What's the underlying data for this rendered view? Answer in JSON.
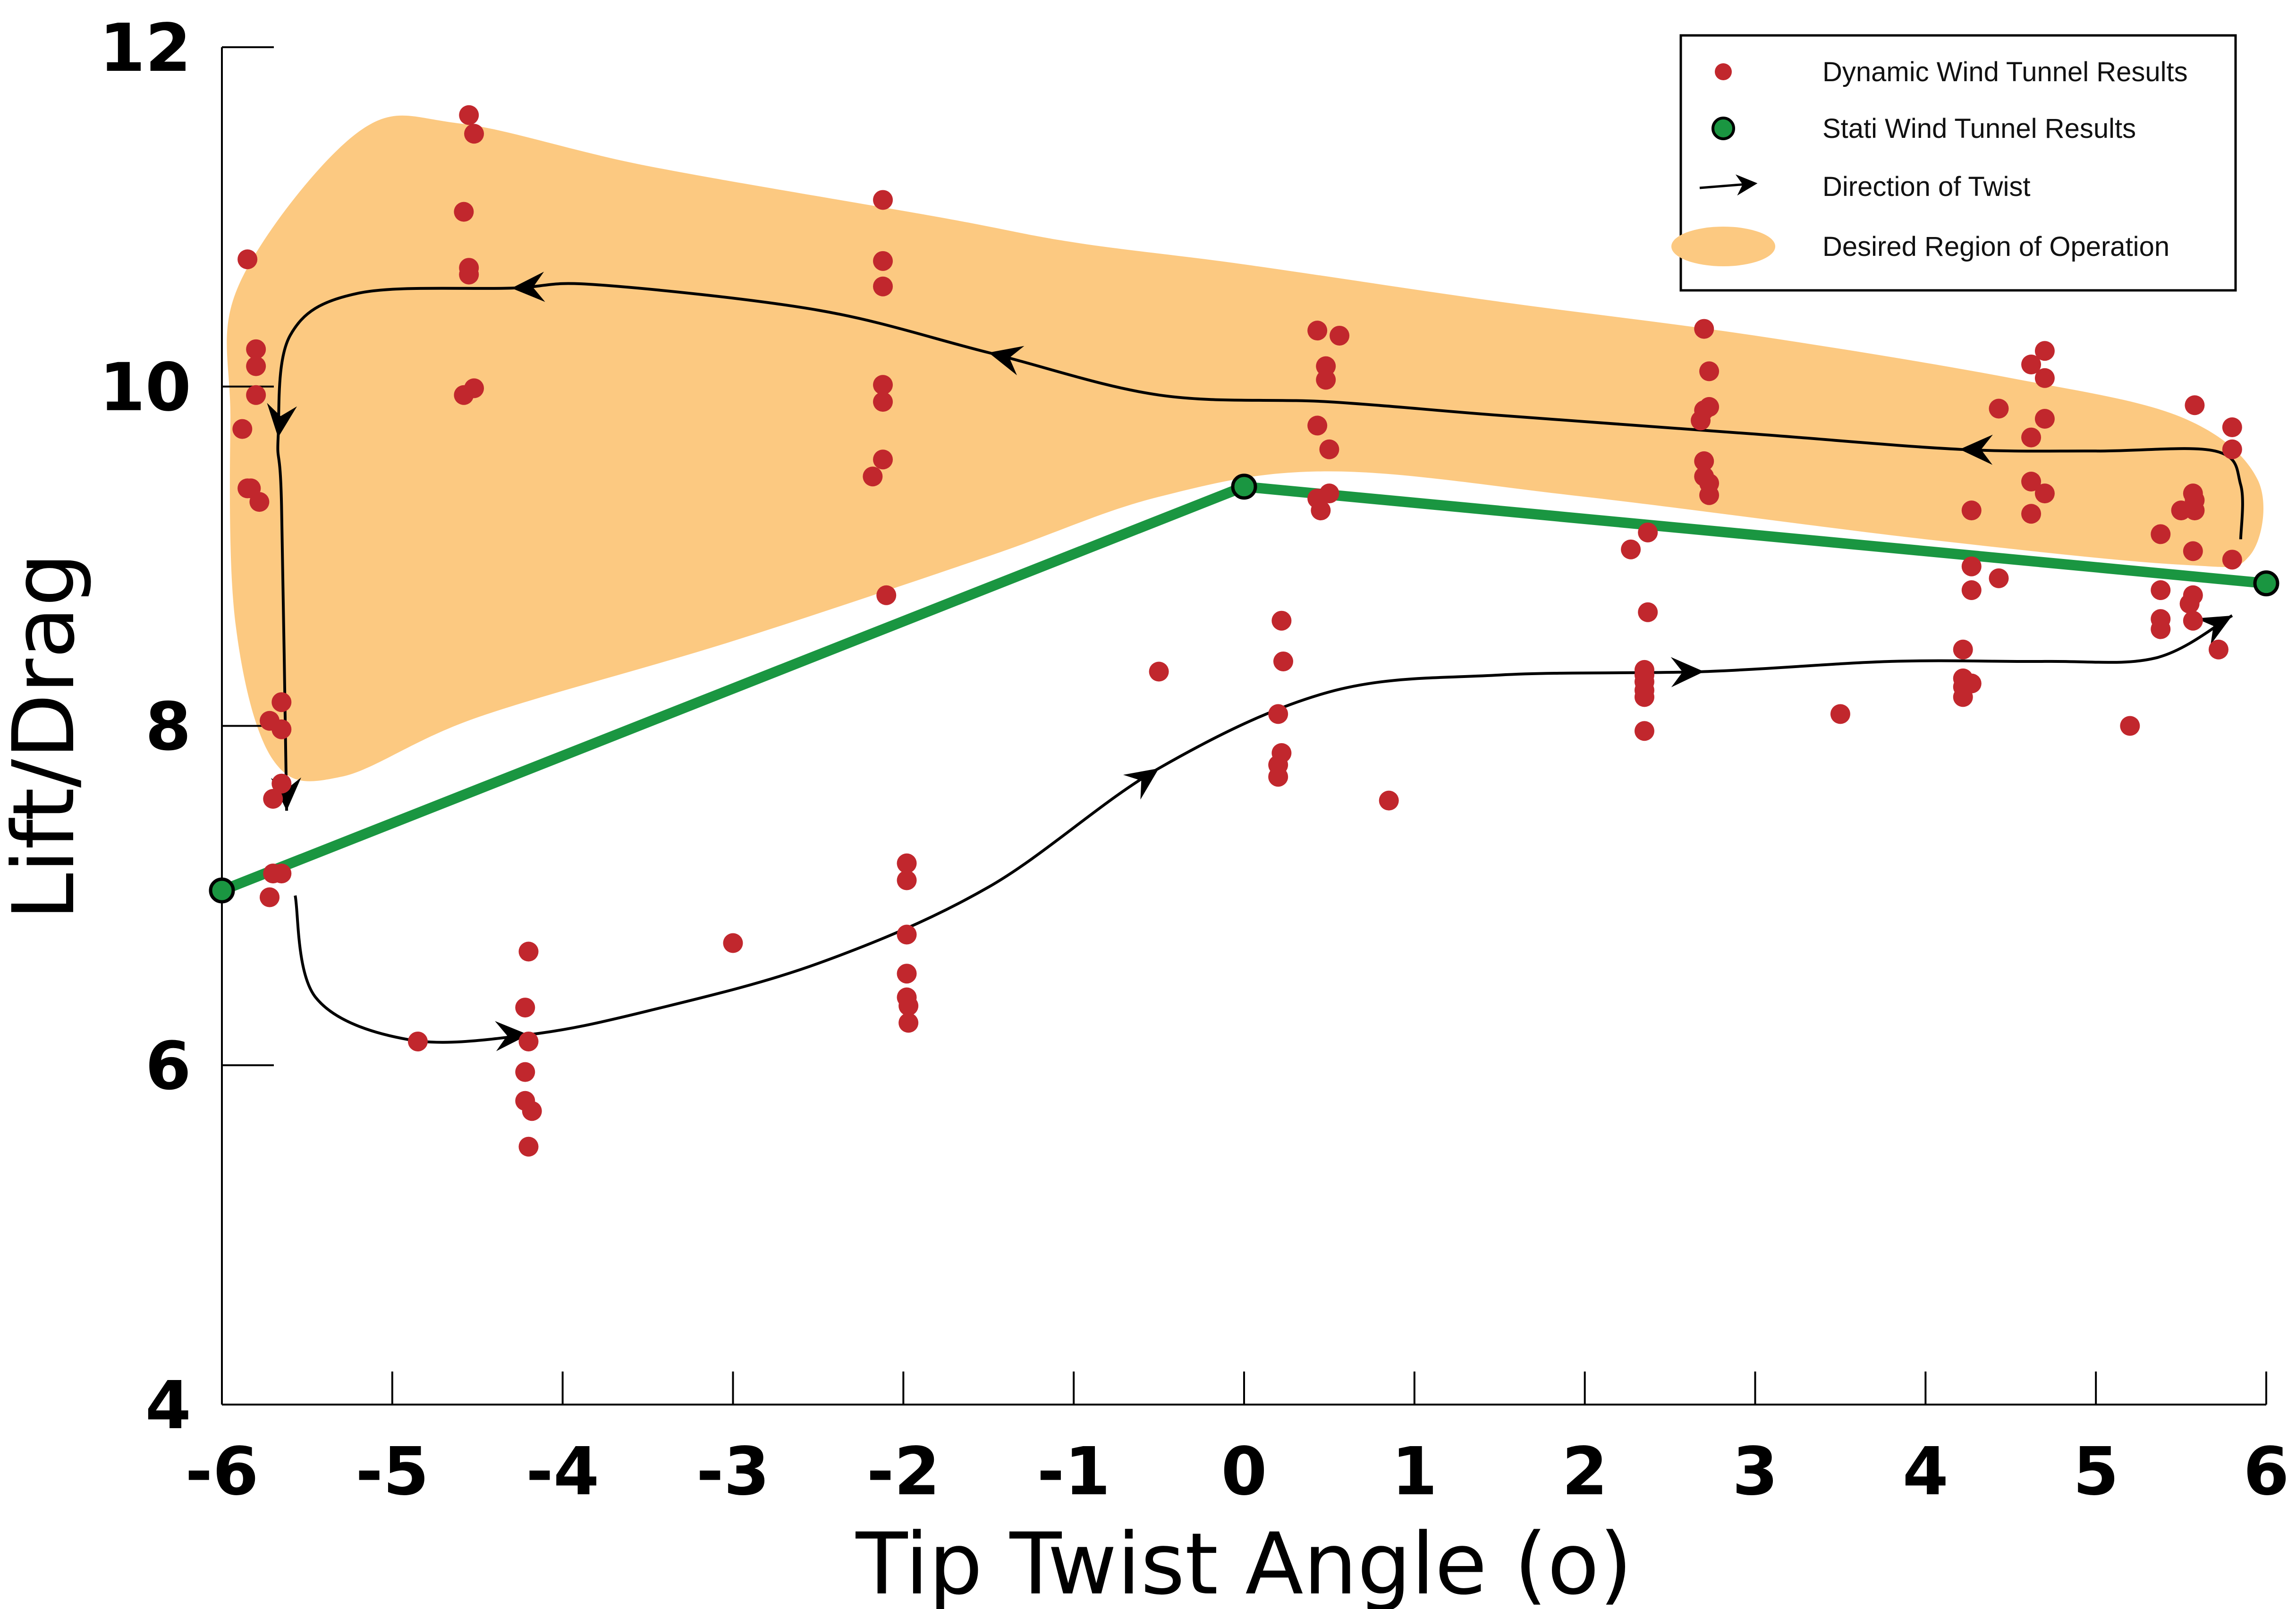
{
  "chart_data": {
    "type": "scatter",
    "xlabel": "Tip Twist Angle (o)",
    "ylabel": "Lift/Drag",
    "xlim": [
      -6,
      6
    ],
    "ylim": [
      4,
      12
    ],
    "x_ticks": [
      "-6",
      "-5",
      "-4",
      "-3",
      "-2",
      "-1",
      "0",
      "1",
      "2",
      "3",
      "4",
      "5",
      "6"
    ],
    "y_ticks": [
      "4",
      "6",
      "8",
      "10",
      "12"
    ],
    "grid": false,
    "legend_position": "top-right",
    "legend": [
      {
        "label": "Dynamic Wind Tunnel Results",
        "marker": "red-dot"
      },
      {
        "label": "Stati Wind Tunnel Results",
        "marker": "green-dot"
      },
      {
        "label": "Direction of Twist",
        "marker": "arrow"
      },
      {
        "label": "Desired Region of Operation",
        "marker": "orange-ellipse"
      }
    ],
    "colors": {
      "dynamic": "#c1272d",
      "static": "#1a9641",
      "region": "#fcc981",
      "arrow": "#000000"
    },
    "series": [
      {
        "name": "Dynamic Wind Tunnel Results",
        "points": [
          [
            -5.88,
            9.75
          ],
          [
            -5.85,
            10.75
          ],
          [
            -5.85,
            9.4
          ],
          [
            -5.83,
            9.4
          ],
          [
            -5.8,
            10.22
          ],
          [
            -5.8,
            10.12
          ],
          [
            -5.8,
            9.95
          ],
          [
            -5.78,
            9.32
          ],
          [
            -5.72,
            8.03
          ],
          [
            -5.7,
            7.57
          ],
          [
            -5.7,
            7.13
          ],
          [
            -5.72,
            6.99
          ],
          [
            -5.65,
            8.14
          ],
          [
            -5.65,
            7.98
          ],
          [
            -5.65,
            7.66
          ],
          [
            -5.65,
            7.13
          ],
          [
            -4.58,
            11.03
          ],
          [
            -4.55,
            11.6
          ],
          [
            -4.55,
            10.7
          ],
          [
            -4.55,
            10.66
          ],
          [
            -4.52,
            11.49
          ],
          [
            -4.52,
            9.99
          ],
          [
            -4.58,
            9.95
          ],
          [
            -4.85,
            6.14
          ],
          [
            -4.2,
            6.67
          ],
          [
            -4.22,
            6.34
          ],
          [
            -4.2,
            6.14
          ],
          [
            -4.22,
            5.96
          ],
          [
            -4.22,
            5.79
          ],
          [
            -4.18,
            5.73
          ],
          [
            -4.2,
            5.52
          ],
          [
            -3.0,
            6.72
          ],
          [
            -2.12,
            11.1
          ],
          [
            -2.12,
            10.74
          ],
          [
            -2.12,
            10.59
          ],
          [
            -2.12,
            10.01
          ],
          [
            -2.12,
            9.91
          ],
          [
            -2.12,
            9.57
          ],
          [
            -2.18,
            9.47
          ],
          [
            -2.1,
            8.77
          ],
          [
            -1.98,
            7.19
          ],
          [
            -1.98,
            7.09
          ],
          [
            -1.98,
            6.77
          ],
          [
            -1.98,
            6.54
          ],
          [
            -1.98,
            6.4
          ],
          [
            -1.97,
            6.35
          ],
          [
            -1.97,
            6.25
          ],
          [
            -0.5,
            8.32
          ],
          [
            0.43,
            10.33
          ],
          [
            0.48,
            10.12
          ],
          [
            0.48,
            10.04
          ],
          [
            0.56,
            10.3
          ],
          [
            0.43,
            9.77
          ],
          [
            0.5,
            9.63
          ],
          [
            0.43,
            9.34
          ],
          [
            0.5,
            9.37
          ],
          [
            0.45,
            9.27
          ],
          [
            0.22,
            8.62
          ],
          [
            0.23,
            8.38
          ],
          [
            0.2,
            8.07
          ],
          [
            0.22,
            7.84
          ],
          [
            0.2,
            7.77
          ],
          [
            0.2,
            7.7
          ],
          [
            0.85,
            7.56
          ],
          [
            2.27,
            9.04
          ],
          [
            2.37,
            9.14
          ],
          [
            2.37,
            8.67
          ],
          [
            2.35,
            8.33
          ],
          [
            2.35,
            8.3
          ],
          [
            2.35,
            8.26
          ],
          [
            2.35,
            8.21
          ],
          [
            2.35,
            8.17
          ],
          [
            2.35,
            7.97
          ],
          [
            2.7,
            10.34
          ],
          [
            2.73,
            10.09
          ],
          [
            2.73,
            9.88
          ],
          [
            2.7,
            9.86
          ],
          [
            2.68,
            9.8
          ],
          [
            2.7,
            9.56
          ],
          [
            2.7,
            9.47
          ],
          [
            2.73,
            9.43
          ],
          [
            2.73,
            9.36
          ],
          [
            3.5,
            8.07
          ],
          [
            4.22,
            8.45
          ],
          [
            4.22,
            8.28
          ],
          [
            4.27,
            8.25
          ],
          [
            4.22,
            8.23
          ],
          [
            4.22,
            8.17
          ],
          [
            4.27,
            8.94
          ],
          [
            4.27,
            8.8
          ],
          [
            4.27,
            9.27
          ],
          [
            4.43,
            9.87
          ],
          [
            4.43,
            8.87
          ],
          [
            4.62,
            10.13
          ],
          [
            4.62,
            9.7
          ],
          [
            4.62,
            9.44
          ],
          [
            4.62,
            9.25
          ],
          [
            4.7,
            10.21
          ],
          [
            4.7,
            10.05
          ],
          [
            4.7,
            9.81
          ],
          [
            4.7,
            9.37
          ],
          [
            5.2,
            8.0
          ],
          [
            5.38,
            8.8
          ],
          [
            5.38,
            9.13
          ],
          [
            5.38,
            8.63
          ],
          [
            5.38,
            8.57
          ],
          [
            5.5,
            9.27
          ],
          [
            5.58,
            9.89
          ],
          [
            5.57,
            9.37
          ],
          [
            5.58,
            9.33
          ],
          [
            5.58,
            9.27
          ],
          [
            5.57,
            9.03
          ],
          [
            5.57,
            8.77
          ],
          [
            5.55,
            8.72
          ],
          [
            5.57,
            8.62
          ],
          [
            5.72,
            8.45
          ],
          [
            5.8,
            9.76
          ],
          [
            5.8,
            9.63
          ],
          [
            5.8,
            8.98
          ]
        ]
      },
      {
        "name": "Stati Wind Tunnel Results",
        "points": [
          [
            -6,
            7.03
          ],
          [
            0,
            9.41
          ],
          [
            6,
            8.84
          ]
        ]
      }
    ],
    "desired_region": [
      [
        -5.9,
        10.6
      ],
      [
        -5.2,
        11.5
      ],
      [
        -4.6,
        11.55
      ],
      [
        -3.5,
        11.3
      ],
      [
        -1.8,
        11.0
      ],
      [
        -1.0,
        10.85
      ],
      [
        0,
        10.72
      ],
      [
        1.5,
        10.5
      ],
      [
        3.0,
        10.3
      ],
      [
        4.5,
        10.05
      ],
      [
        5.5,
        9.82
      ],
      [
        5.95,
        9.45
      ],
      [
        5.9,
        9.0
      ],
      [
        5.5,
        8.95
      ],
      [
        4.0,
        9.1
      ],
      [
        2.0,
        9.35
      ],
      [
        0.5,
        9.5
      ],
      [
        -0.5,
        9.35
      ],
      [
        -1.5,
        9.0
      ],
      [
        -3.0,
        8.5
      ],
      [
        -4.5,
        8.05
      ],
      [
        -5.3,
        7.7
      ],
      [
        -5.7,
        7.8
      ],
      [
        -5.92,
        8.6
      ],
      [
        -5.95,
        9.8
      ]
    ],
    "twist_path_increasing": [
      [
        -5.57,
        7.0
      ],
      [
        -5.45,
        6.4
      ],
      [
        -4.9,
        6.15
      ],
      [
        -4.2,
        6.18
      ],
      [
        -3.5,
        6.32
      ],
      [
        -2.5,
        6.6
      ],
      [
        -1.5,
        7.05
      ],
      [
        -0.5,
        7.75
      ],
      [
        0.5,
        8.2
      ],
      [
        1.5,
        8.3
      ],
      [
        2.7,
        8.32
      ],
      [
        3.8,
        8.38
      ],
      [
        4.7,
        8.38
      ],
      [
        5.35,
        8.4
      ],
      [
        5.8,
        8.65
      ]
    ],
    "twist_path_decreasing": [
      [
        5.85,
        9.1
      ],
      [
        5.85,
        9.42
      ],
      [
        5.7,
        9.62
      ],
      [
        5.0,
        9.62
      ],
      [
        4.2,
        9.63
      ],
      [
        3.0,
        9.72
      ],
      [
        1.5,
        9.83
      ],
      [
        0.5,
        9.91
      ],
      [
        -0.5,
        9.95
      ],
      [
        -1.5,
        10.2
      ],
      [
        -2.5,
        10.45
      ],
      [
        -3.8,
        10.6
      ],
      [
        -4.3,
        10.58
      ],
      [
        -5.2,
        10.55
      ],
      [
        -5.6,
        10.3
      ],
      [
        -5.67,
        9.7
      ],
      [
        -5.65,
        9.3
      ],
      [
        -5.62,
        7.5
      ]
    ]
  }
}
